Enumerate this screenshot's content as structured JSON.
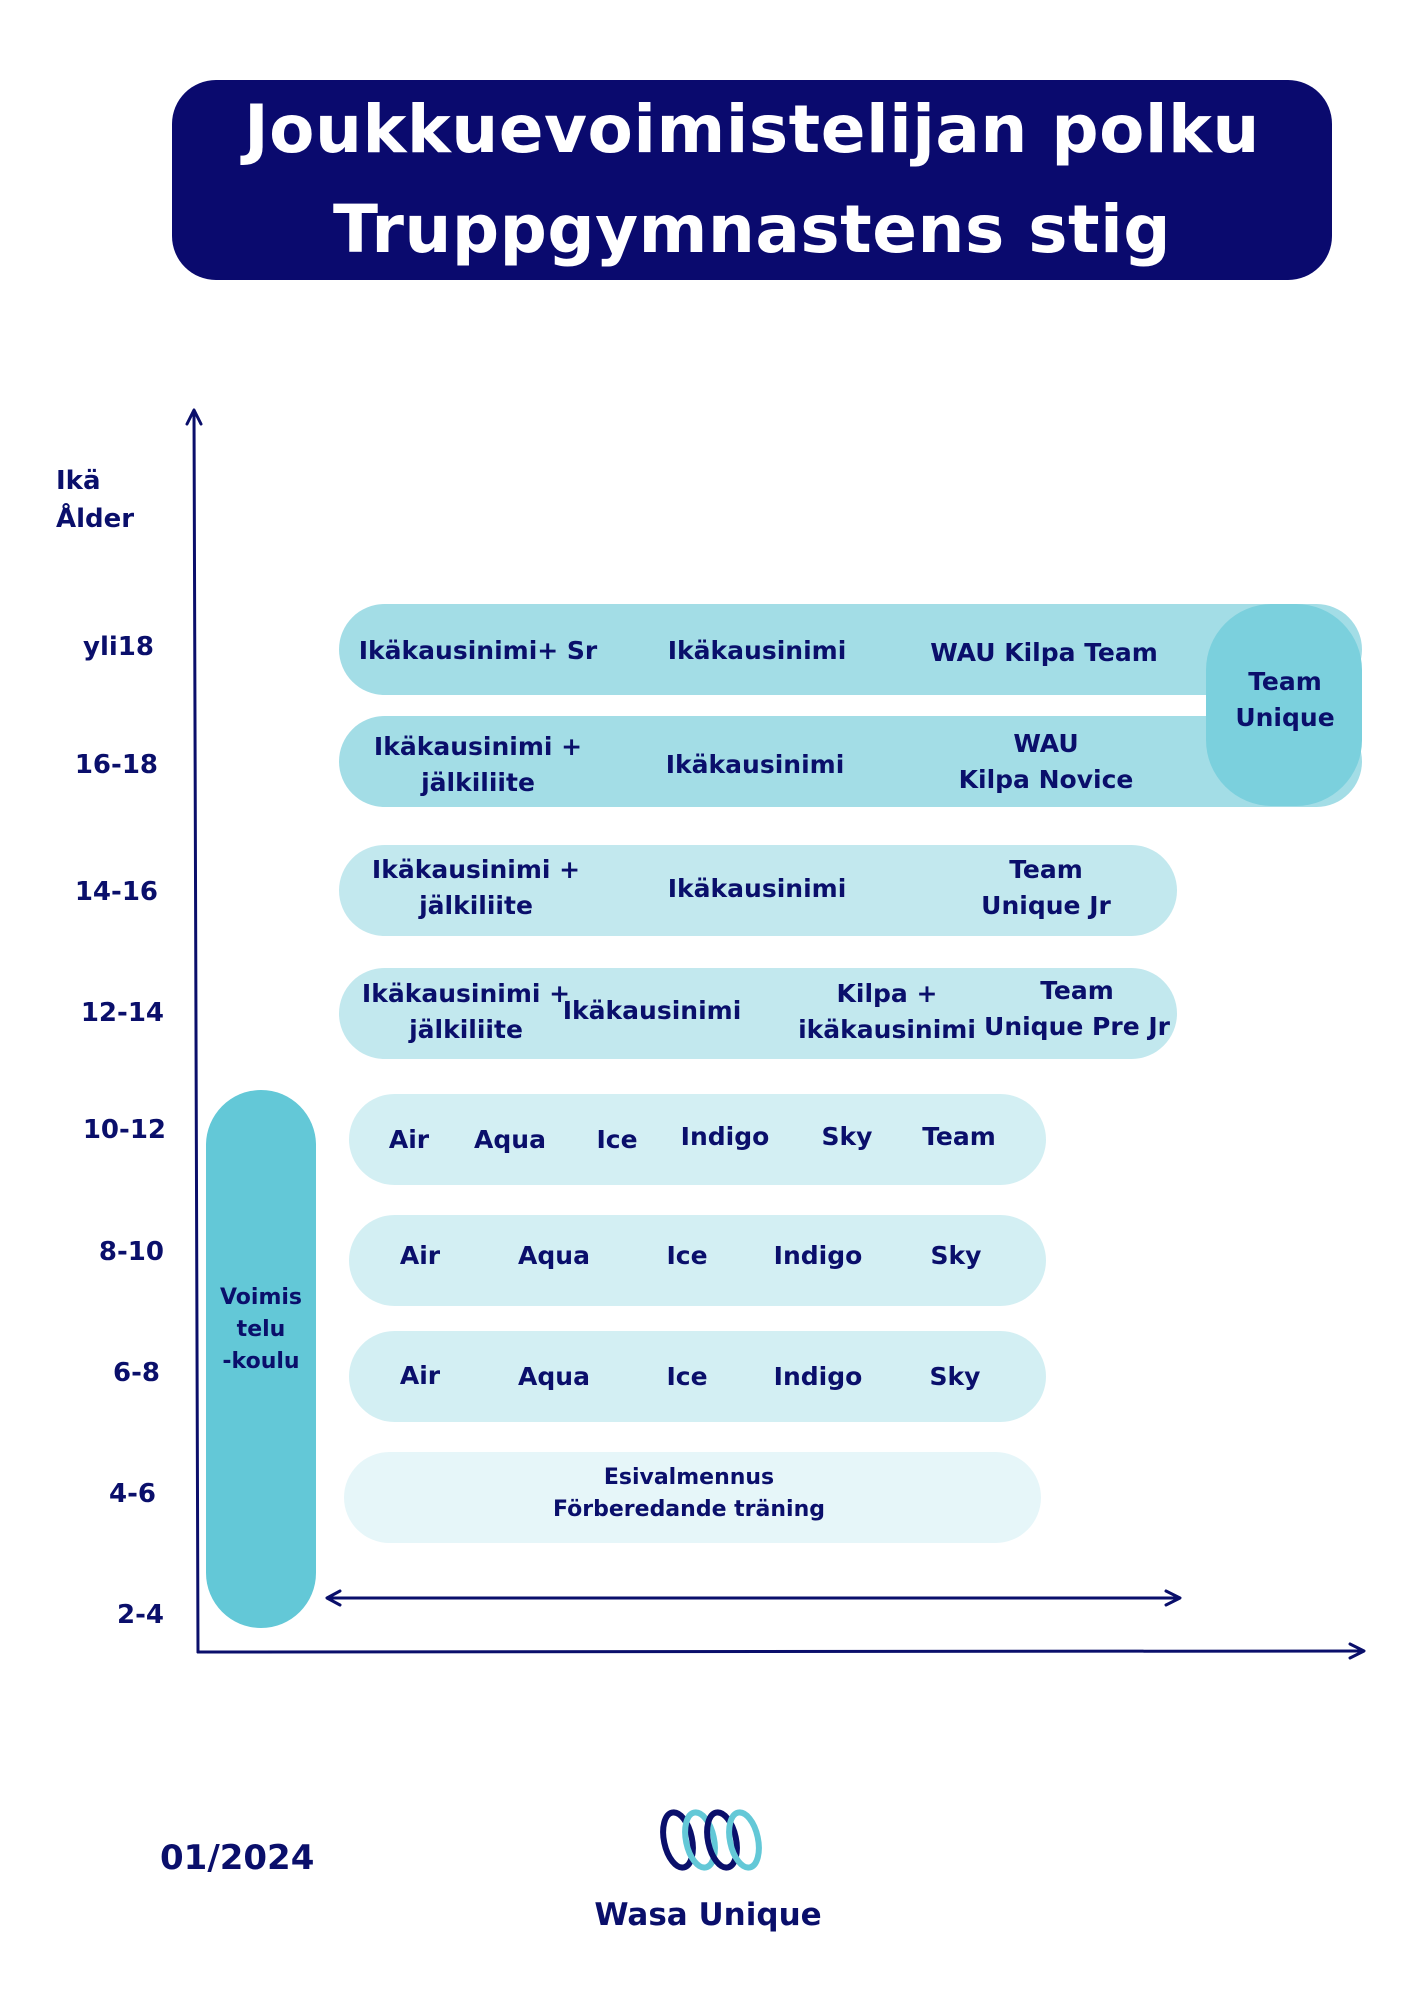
{
  "title": {
    "line1": "Joukkuevoimistelijan polku",
    "line2": "Truppgymnastens stig"
  },
  "axis": {
    "title_fi": "Ikä",
    "title_sv": "Ålder",
    "ages": [
      "yli18",
      "16-18",
      "14-16",
      "12-14",
      "10-12",
      "8-10",
      "6-8",
      "4-6",
      "2-4"
    ]
  },
  "rows": {
    "over18": {
      "col1": "Ikäkausinimi+ Sr",
      "col2": "Ikäkausinimi",
      "col3": "WAU Kilpa Team"
    },
    "age16_18": {
      "col1": [
        "Ikäkausinimi +",
        "jälkiliite"
      ],
      "col2": "Ikäkausinimi",
      "col3": [
        "WAU",
        "Kilpa Novice"
      ]
    },
    "team_unique": [
      "Team",
      "Unique"
    ],
    "age14_16": {
      "col1": [
        "Ikäkausinimi +",
        "jälkiliite"
      ],
      "col2": "Ikäkausinimi",
      "col3": [
        "Team",
        "Unique Jr"
      ]
    },
    "age12_14": {
      "col1": [
        "Ikäkausinimi +",
        "jälkiliite"
      ],
      "col2": "Ikäkausinimi",
      "col3": [
        "Kilpa +",
        "ikäkausinimi"
      ],
      "col4": [
        "Team",
        "Unique Pre Jr"
      ]
    },
    "age10_12": [
      "Air",
      "Aqua",
      "Ice",
      "Indigo",
      "Sky",
      "Team"
    ],
    "age8_10": [
      "Air",
      "Aqua",
      "Ice",
      "Indigo",
      "Sky"
    ],
    "age6_8": [
      "Air",
      "Aqua",
      "Ice",
      "Indigo",
      "Sky"
    ],
    "age4_6": {
      "fi": "Esivalmennus",
      "sv": "Förberedande träning"
    }
  },
  "school": [
    "Voimis",
    "telu",
    "-koulu"
  ],
  "footer": {
    "date": "01/2024",
    "logo_text": "Wasa Unique",
    "logo_icon": "wasa-unique-rings-logo"
  },
  "colors": {
    "navy": "#0a0a6e",
    "teal_dark": "#63c8d7",
    "teal_mid": "#7bd0dd",
    "pill_1": "#a3dde6",
    "pill_2": "#c2e8ee",
    "pill_3": "#d3eff3",
    "pill_4": "#e6f6f9"
  }
}
